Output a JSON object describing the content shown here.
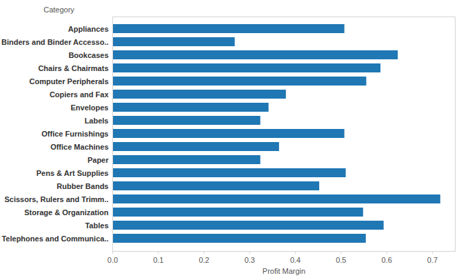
{
  "chart_data": {
    "type": "bar",
    "orientation": "horizontal",
    "y_label": "Category",
    "x_label": "Profit Margin",
    "categories": [
      "Appliances",
      "Binders and Binder Accesso..",
      "Bookcases",
      "Chairs & Chairmats",
      "Computer Peripherals",
      "Copiers and Fax",
      "Envelopes",
      "Labels",
      "Office Furnishings",
      "Office Machines",
      "Paper",
      "Pens & Art Supplies",
      "Rubber Bands",
      "Scissors, Rulers and Trimm..",
      "Storage & Organization",
      "Tables",
      "Telephones and Communica.."
    ],
    "values": [
      0.508,
      0.268,
      0.625,
      0.587,
      0.556,
      0.38,
      0.342,
      0.324,
      0.508,
      0.365,
      0.324,
      0.511,
      0.453,
      0.718,
      0.549,
      0.594,
      0.555
    ],
    "color": "#1f77b4",
    "xlim": [
      0,
      0.75
    ],
    "xticks": [
      {
        "value": 0,
        "label": "0.0"
      },
      0.1,
      0.2,
      0.3,
      0.4,
      0.5,
      0.6,
      0.7
    ],
    "grid": false
  }
}
